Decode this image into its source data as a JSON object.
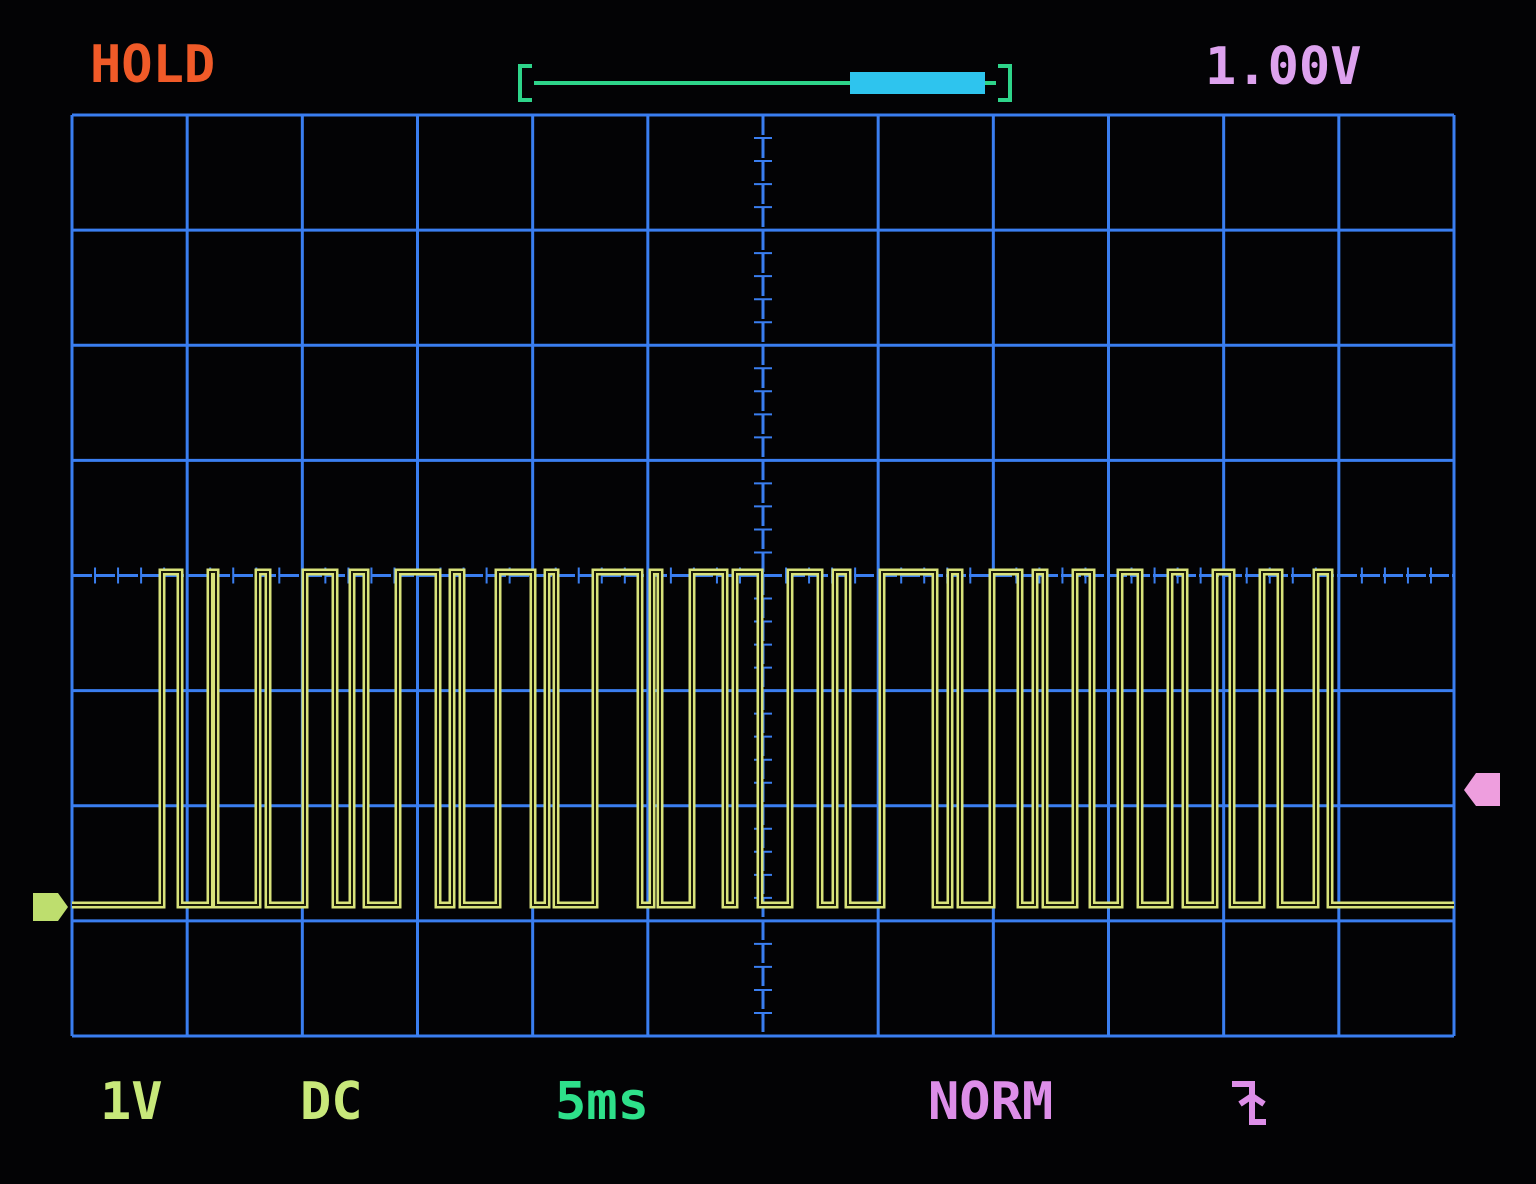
{
  "header": {
    "status": "HOLD",
    "trigger_level": "1.00V"
  },
  "footer": {
    "volts_per_div": "1V",
    "coupling": "DC",
    "time_per_div": "5ms",
    "trigger_mode": "NORM"
  }
}
